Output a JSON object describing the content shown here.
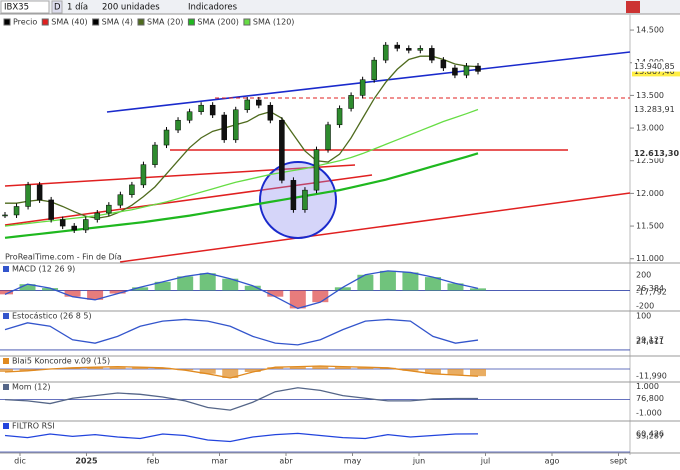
{
  "toolbar": {
    "symbol": "IBX35",
    "mode": "D",
    "period": "1 día",
    "units": "200 unidades",
    "indicators": "Indicadores"
  },
  "watermark": "ProRealTime.com - Fin de Día",
  "x_axis": {
    "labels": [
      "dic",
      "2025",
      "feb",
      "mar",
      "abr",
      "may",
      "jun",
      "jul",
      "ago",
      "sept"
    ]
  },
  "main_chart": {
    "ylim": [
      10950,
      14700
    ],
    "yticks": [
      {
        "value": 11000,
        "label": "11.000"
      },
      {
        "value": 11500,
        "label": "11.500"
      },
      {
        "value": 12000,
        "label": "12.000"
      },
      {
        "value": 12500,
        "label": "12.500"
      },
      {
        "value": 13000,
        "label": "13.000"
      },
      {
        "value": 13500,
        "label": "13.500"
      },
      {
        "value": 14000,
        "label": "14.000"
      },
      {
        "value": 14500,
        "label": "14.500"
      }
    ],
    "legend": [
      {
        "name": "Precio",
        "color": "#000000"
      },
      {
        "name": "SMA (40)",
        "color": "#e02020"
      },
      {
        "name": "SMA (4)",
        "color": "#000000"
      },
      {
        "name": "SMA (20)",
        "color": "#4f6b1e"
      },
      {
        "name": "SMA (200)",
        "color": "#1fb81f"
      },
      {
        "name": "SMA (120)",
        "color": "#66dd44"
      }
    ],
    "series": [
      {
        "name": "Precio",
        "color": "#000000",
        "last_label": "13.867,40",
        "values": [
          11670,
          11800,
          12130,
          11900,
          11600,
          11500,
          11440,
          11600,
          11700,
          11820,
          11980,
          12130,
          12440,
          12740,
          12970,
          13120,
          13250,
          13350,
          13200,
          12820,
          13280,
          13430,
          13350,
          13120,
          12200,
          11750,
          12050,
          12670,
          13050,
          13300,
          13500,
          13740,
          14040,
          14270,
          14220,
          14190,
          14220,
          14040,
          13920,
          13810,
          13950,
          13867.4
        ]
      },
      {
        "name": "SMA (20)",
        "color": "#4f6b1e",
        "last_label": "13.940,85",
        "values": [
          11850,
          11850,
          11880,
          11900,
          11870,
          11800,
          11720,
          11650,
          11620,
          11650,
          11720,
          11820,
          11950,
          12100,
          12300,
          12500,
          12700,
          12850,
          12950,
          13000,
          13050,
          13100,
          13200,
          13250,
          13150,
          12900,
          12650,
          12500,
          12480,
          12600,
          12850,
          13150,
          13450,
          13700,
          13900,
          14050,
          14100,
          14100,
          14050,
          13980,
          13950,
          13940.85
        ]
      },
      {
        "name": "SMA (120)",
        "color": "#66dd44",
        "last_label": "13.283,91",
        "values": [
          11500,
          11520,
          11540,
          11560,
          11580,
          11600,
          11620,
          11640,
          11660,
          11690,
          11720,
          11750,
          11790,
          11830,
          11870,
          11920,
          11970,
          12020,
          12070,
          12120,
          12170,
          12210,
          12250,
          12290,
          12320,
          12350,
          12380,
          12420,
          12460,
          12500,
          12550,
          12610,
          12680,
          12750,
          12820,
          12890,
          12960,
          13030,
          13100,
          13160,
          13220,
          13283.91
        ]
      },
      {
        "name": "SMA (200)",
        "color": "#1fb81f",
        "last_label": "12.613,30",
        "values": [
          11320,
          11340,
          11360,
          11380,
          11400,
          11420,
          11440,
          11460,
          11480,
          11500,
          11520,
          11540,
          11560,
          11585,
          11610,
          11635,
          11660,
          11690,
          11720,
          11750,
          11780,
          11810,
          11840,
          11870,
          11900,
          11930,
          11960,
          11990,
          12020,
          12050,
          12090,
          12130,
          12170,
          12210,
          12260,
          12310,
          12360,
          12410,
          12460,
          12510,
          12560,
          12613.3
        ]
      }
    ]
  },
  "indicators": [
    {
      "title": "MACD (12 26 9)",
      "ylim": [
        -250,
        325
      ],
      "color": "#3355cc",
      "values": [
        -50,
        80,
        30,
        -80,
        -120,
        -40,
        40,
        110,
        180,
        220,
        150,
        60,
        -80,
        -230,
        -150,
        40,
        200,
        250,
        230,
        170,
        90,
        26.384
      ],
      "labels": [
        {
          "value": 200,
          "label": "200"
        },
        {
          "value": 26.384,
          "label": "26,384"
        },
        {
          "value": -17.792,
          "label": "-17,792"
        },
        {
          "value": -200,
          "label": "-200"
        }
      ]
    },
    {
      "title": "Estocástico (26 8 5)",
      "ylim": [
        -15,
        112
      ],
      "color": "#3355cc",
      "values": [
        60,
        80,
        70,
        30,
        20,
        40,
        70,
        85,
        90,
        85,
        70,
        40,
        20,
        15,
        30,
        60,
        85,
        90,
        85,
        40,
        20,
        29.127
      ],
      "labels": [
        {
          "value": 100,
          "label": "100"
        },
        {
          "value": 29.127,
          "label": "29,127"
        },
        {
          "value": 24.611,
          "label": "24,611"
        }
      ]
    },
    {
      "title": "Blai5 Koncorde v.09 (15)",
      "ylim": [
        -20,
        20
      ],
      "color": "#e08a20",
      "values": [
        -5,
        -3,
        0,
        2,
        3,
        4,
        3,
        2,
        -2,
        -8,
        -15,
        -5,
        3,
        4,
        5,
        4,
        3,
        2,
        -3,
        -8,
        -10,
        -11.99
      ],
      "labels": [
        {
          "value": -11.99,
          "label": "-11,990"
        }
      ]
    },
    {
      "title": "Mom (12)",
      "ylim": [
        -1550,
        1260
      ],
      "color": "#556688",
      "values": [
        0,
        -100,
        -300,
        100,
        300,
        500,
        400,
        200,
        -100,
        -600,
        -800,
        -200,
        600,
        900,
        700,
        300,
        100,
        -100,
        -100,
        50,
        80,
        76.8
      ],
      "labels": [
        {
          "value": 1000,
          "label": "1.000"
        },
        {
          "value": 76.8,
          "label": "76,800"
        },
        {
          "value": -1000,
          "label": "-1.000"
        }
      ]
    },
    {
      "title": "FILTRO RSI",
      "ylim": [
        0,
        100
      ],
      "color": "#2244dd",
      "values": [
        55,
        48,
        60,
        52,
        58,
        50,
        45,
        60,
        55,
        40,
        35,
        50,
        58,
        62,
        55,
        48,
        45,
        58,
        50,
        55,
        60,
        60.426
      ],
      "labels": [
        {
          "value": 60.426,
          "label": "60,426"
        },
        {
          "value": 53.287,
          "label": "53,287"
        }
      ]
    }
  ]
}
